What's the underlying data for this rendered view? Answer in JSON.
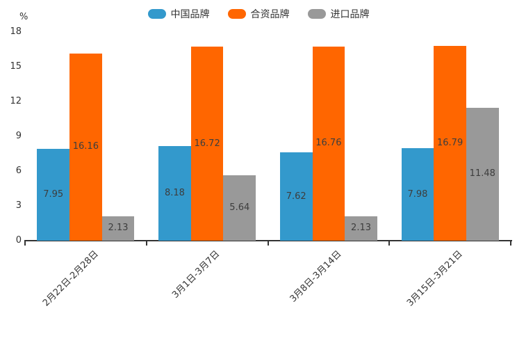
{
  "chart_data": {
    "type": "bar",
    "title": "",
    "unit_label": "%",
    "categories": [
      "2月22日-2月28日",
      "3月1日-3月7日",
      "3月8日-3月14日",
      "3月15日-3月21日"
    ],
    "series": [
      {
        "name": "中国品牌",
        "color": "#3399CC",
        "values": [
          7.95,
          8.18,
          7.62,
          7.98
        ]
      },
      {
        "name": "合资品牌",
        "color": "#FF6600",
        "values": [
          16.16,
          16.72,
          16.76,
          16.79
        ]
      },
      {
        "name": "进口品牌",
        "color": "#999999",
        "values": [
          2.13,
          5.64,
          2.13,
          11.48
        ]
      }
    ],
    "value_labels": [
      [
        "7.95",
        "16.16",
        "2.13"
      ],
      [
        "8.18",
        "16.72",
        "5.64"
      ],
      [
        "7.62",
        "16.76",
        "2.13"
      ],
      [
        "7.98",
        "16.79",
        "11.48"
      ]
    ],
    "ylim": [
      0,
      18
    ],
    "yticks": [
      "0",
      "3",
      "6",
      "9",
      "12",
      "15",
      "18"
    ],
    "grid": false,
    "legend_position": "top",
    "axis_color": "#333333",
    "text_color": "#333333",
    "background_color": "#ffffff"
  }
}
